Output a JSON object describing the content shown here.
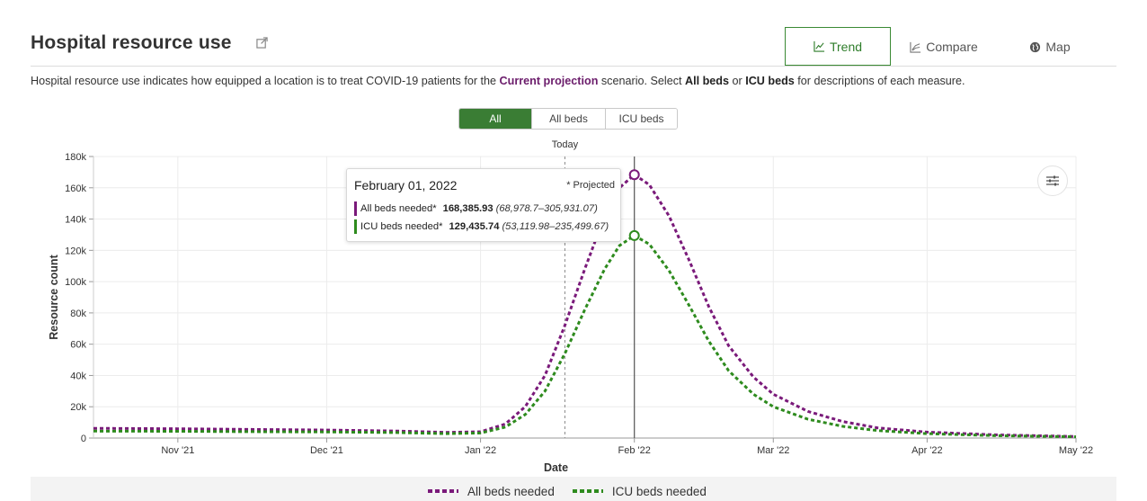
{
  "header": {
    "title": "Hospital resource use",
    "tabs": [
      {
        "label": "Trend",
        "icon": "trend-line-icon",
        "active": true
      },
      {
        "label": "Compare",
        "icon": "compare-lines-icon",
        "active": false
      },
      {
        "label": "Map",
        "icon": "globe-icon",
        "active": false
      }
    ]
  },
  "description": {
    "part1": "Hospital resource use indicates how equipped a location is to treat COVID-19 patients for the ",
    "highlight": "Current projection",
    "part2": " scenario. Select ",
    "bold1": "All beds",
    "part3": " or ",
    "bold2": "ICU beds",
    "part4": " for descriptions of each measure."
  },
  "filter": {
    "options": [
      {
        "label": "All",
        "active": true
      },
      {
        "label": "All beds",
        "active": false
      },
      {
        "label": "ICU beds",
        "active": false
      }
    ]
  },
  "tooltip": {
    "date": "February 01, 2022",
    "projected": "* Projected",
    "rows": [
      {
        "label": "All beds needed*",
        "value": "168,385.93",
        "range": "(68,978.7–305,931.07)",
        "color": "#7a1a7a"
      },
      {
        "label": "ICU beds needed*",
        "value": "129,435.74",
        "range": "(53,119.98–235,499.67)",
        "color": "#2e8b1e"
      }
    ]
  },
  "colors": {
    "all_beds": "#7a1a7a",
    "icu_beds": "#2e8b1e",
    "accent": "#3a7d34",
    "highlight_text": "#6b1c6b"
  },
  "chart_data": {
    "type": "line",
    "xlabel": "Date",
    "ylabel": "Resource count",
    "x_ticks": [
      "Nov '21",
      "Dec '21",
      "Jan '22",
      "Feb '22",
      "Mar '22",
      "Apr '22",
      "May '22"
    ],
    "y_ticks": [
      "0",
      "20k",
      "40k",
      "60k",
      "80k",
      "100k",
      "120k",
      "140k",
      "160k",
      "180k"
    ],
    "xlim": [
      "2021-10-15",
      "2022-05-01"
    ],
    "ylim": [
      0,
      180000
    ],
    "grid": true,
    "markers": {
      "today": {
        "label": "Today",
        "date": "2022-01-18"
      },
      "hover": "2022-02-01"
    },
    "series": [
      {
        "name": "All beds needed",
        "key": "all_beds",
        "style": "dotted",
        "points": [
          [
            "2021-10-15",
            6200
          ],
          [
            "2021-11-01",
            5900
          ],
          [
            "2021-11-15",
            5500
          ],
          [
            "2021-12-01",
            5100
          ],
          [
            "2021-12-15",
            4500
          ],
          [
            "2021-12-25",
            3600
          ],
          [
            "2022-01-01",
            4000
          ],
          [
            "2022-01-06",
            9000
          ],
          [
            "2022-01-10",
            20000
          ],
          [
            "2022-01-14",
            40000
          ],
          [
            "2022-01-18",
            72000
          ],
          [
            "2022-01-22",
            108000
          ],
          [
            "2022-01-26",
            142000
          ],
          [
            "2022-01-29",
            160000
          ],
          [
            "2022-02-01",
            168386
          ],
          [
            "2022-02-04",
            162000
          ],
          [
            "2022-02-08",
            142000
          ],
          [
            "2022-02-12",
            114000
          ],
          [
            "2022-02-16",
            84000
          ],
          [
            "2022-02-20",
            59000
          ],
          [
            "2022-02-25",
            39000
          ],
          [
            "2022-03-01",
            28000
          ],
          [
            "2022-03-08",
            17000
          ],
          [
            "2022-03-15",
            10500
          ],
          [
            "2022-03-22",
            6500
          ],
          [
            "2022-04-01",
            3800
          ],
          [
            "2022-04-15",
            2000
          ],
          [
            "2022-05-01",
            1000
          ]
        ]
      },
      {
        "name": "ICU beds needed",
        "key": "icu_beds",
        "style": "dotted",
        "points": [
          [
            "2021-10-15",
            4400
          ],
          [
            "2021-11-01",
            4300
          ],
          [
            "2021-11-15",
            4100
          ],
          [
            "2021-12-01",
            3900
          ],
          [
            "2021-12-15",
            3500
          ],
          [
            "2021-12-25",
            2800
          ],
          [
            "2022-01-01",
            3200
          ],
          [
            "2022-01-06",
            7000
          ],
          [
            "2022-01-10",
            15000
          ],
          [
            "2022-01-14",
            30000
          ],
          [
            "2022-01-18",
            54000
          ],
          [
            "2022-01-22",
            82000
          ],
          [
            "2022-01-26",
            108000
          ],
          [
            "2022-01-29",
            123000
          ],
          [
            "2022-02-01",
            129436
          ],
          [
            "2022-02-04",
            124000
          ],
          [
            "2022-02-08",
            107000
          ],
          [
            "2022-02-12",
            85000
          ],
          [
            "2022-02-16",
            62000
          ],
          [
            "2022-02-20",
            43000
          ],
          [
            "2022-02-25",
            28000
          ],
          [
            "2022-03-01",
            20000
          ],
          [
            "2022-03-08",
            12000
          ],
          [
            "2022-03-15",
            7500
          ],
          [
            "2022-03-22",
            4800
          ],
          [
            "2022-04-01",
            2800
          ],
          [
            "2022-04-15",
            1500
          ],
          [
            "2022-05-01",
            800
          ]
        ]
      }
    ]
  }
}
